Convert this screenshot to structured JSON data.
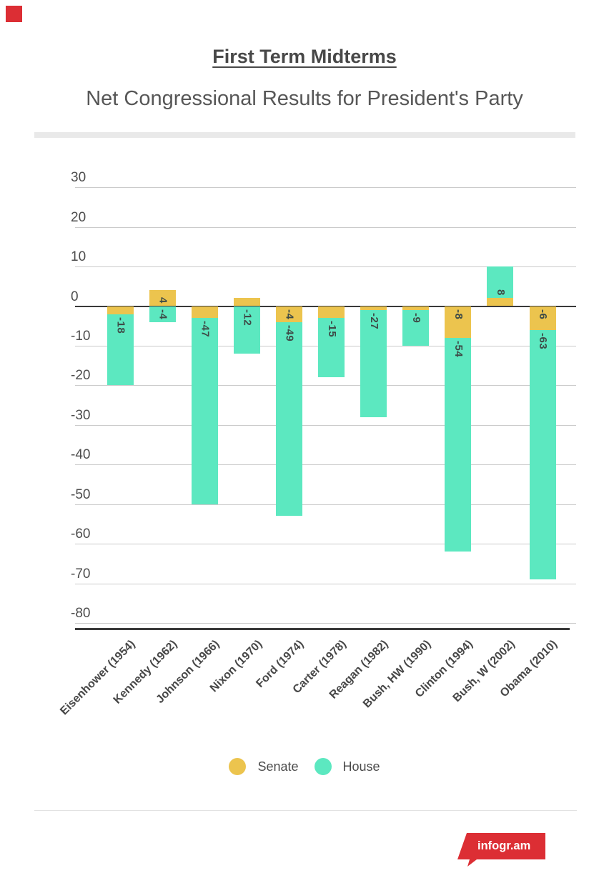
{
  "page": {
    "title": "First Term Midterms",
    "subtitle": "Net Congressional Results for President's Party"
  },
  "branding": {
    "logo_text": "infogr.am",
    "brand_red": "#dc2e34"
  },
  "legend": {
    "items": [
      {
        "label": "Senate",
        "color": "#ecc44e"
      },
      {
        "label": "House",
        "color": "#5ce8c0"
      }
    ]
  },
  "chart_data": {
    "type": "bar",
    "stacked": true,
    "title": "First Term Midterms",
    "subtitle": "Net Congressional Results for President's Party",
    "categories": [
      "Eisenhower (1954)",
      "Kennedy (1962)",
      "Johnson (1966)",
      "Nixon (1970)",
      "Ford (1974)",
      "Carter (1978)",
      "Reagan (1982)",
      "Bush, HW (1990)",
      "Clinton (1994)",
      "Bush, W (2002)",
      "Obama (2010)"
    ],
    "series": [
      {
        "name": "Senate",
        "color": "#ecc44e",
        "values": [
          -2,
          4,
          -3,
          2,
          -4,
          -3,
          -1,
          -1,
          -8,
          2,
          -6
        ],
        "labels": [
          "",
          "4",
          "",
          "",
          "-4",
          "",
          "",
          "",
          "-8",
          "",
          "-6"
        ]
      },
      {
        "name": "House",
        "color": "#5ce8c0",
        "values": [
          -18,
          -4,
          -47,
          -12,
          -49,
          -15,
          -27,
          -9,
          -54,
          8,
          -63
        ],
        "labels": [
          "-18",
          "-4",
          "-47",
          "-12",
          "-49",
          "-15",
          "-27",
          "-9",
          "-54",
          "8",
          "-63"
        ]
      }
    ],
    "yticks": [
      30,
      20,
      10,
      0,
      -10,
      -20,
      -30,
      -40,
      -50,
      -60,
      -70,
      -80
    ],
    "ylim": [
      -80,
      30
    ],
    "grid": true,
    "legend_position": "bottom",
    "colors": {
      "grid": "#cbcbcb",
      "zero_line": "#3a3a3a",
      "axis_line": "#3a3a3a",
      "tick_text": "#4d4d4d",
      "bar_label_text": "#3e4b47",
      "category_text": "#474747"
    }
  }
}
